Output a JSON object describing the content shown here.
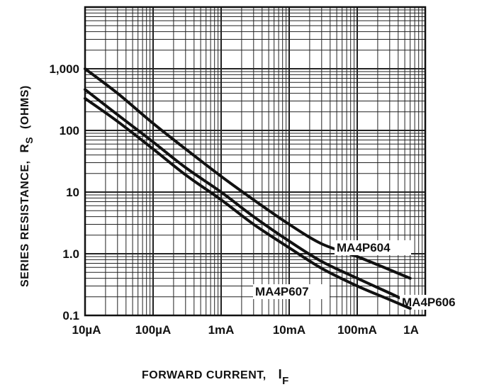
{
  "chart_data": {
    "type": "line",
    "title": "",
    "xlabel": "FORWARD CURRENT,",
    "xlabel_symbol": "I",
    "xlabel_subscript": "F",
    "ylabel": "SERIES RESISTANCE,",
    "ylabel_symbol": "R",
    "ylabel_subscript": "S",
    "ylabel_unit": "(OHMS)",
    "x_scale": "log",
    "y_scale": "log",
    "xlim": [
      "10µA",
      "1A"
    ],
    "ylim": [
      0.1,
      10000
    ],
    "grid": true,
    "x_ticks": [
      {
        "value": 1e-05,
        "label": "10µA"
      },
      {
        "value": 0.0001,
        "label": "100µA"
      },
      {
        "value": 0.001,
        "label": "1mA"
      },
      {
        "value": 0.01,
        "label": "10mA"
      },
      {
        "value": 0.1,
        "label": "100mA"
      },
      {
        "value": 1,
        "label": "1A"
      }
    ],
    "y_ticks": [
      {
        "value": 0.1,
        "label": "0.1"
      },
      {
        "value": 1,
        "label": "1.0"
      },
      {
        "value": 10,
        "label": "10"
      },
      {
        "value": 100,
        "label": "100"
      },
      {
        "value": 1000,
        "label": "1,000"
      }
    ],
    "series": [
      {
        "name": "MA4P604",
        "x_amps": [
          1e-05,
          3e-05,
          0.0001,
          0.0003,
          0.001,
          0.003,
          0.01,
          0.03,
          0.1,
          0.3,
          0.6
        ],
        "y_ohms": [
          1000,
          400,
          130,
          50,
          18,
          7.5,
          3.0,
          1.45,
          0.9,
          0.55,
          0.4
        ]
      },
      {
        "name": "MA4P606",
        "x_amps": [
          1e-05,
          3e-05,
          0.0001,
          0.0003,
          0.001,
          0.003,
          0.01,
          0.03,
          0.1,
          0.3,
          0.6
        ],
        "y_ohms": [
          460,
          180,
          65,
          25,
          10,
          4.0,
          1.6,
          0.75,
          0.4,
          0.23,
          0.16
        ]
      },
      {
        "name": "MA4P607",
        "x_amps": [
          1e-05,
          3e-05,
          0.0001,
          0.0003,
          0.001,
          0.003,
          0.01,
          0.03,
          0.1,
          0.3,
          0.6
        ],
        "y_ohms": [
          330,
          140,
          50,
          19,
          7.5,
          3.0,
          1.25,
          0.58,
          0.3,
          0.18,
          0.13
        ]
      }
    ]
  }
}
